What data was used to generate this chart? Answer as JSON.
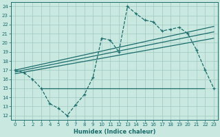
{
  "title": "",
  "xlabel": "Humidex (Indice chaleur)",
  "ylabel": "",
  "bg_color": "#c8e8e0",
  "grid_color": "#a0c8c0",
  "line_color": "#1a6b6b",
  "ylim": [
    11.5,
    24.5
  ],
  "xlim": [
    -0.5,
    23.5
  ],
  "yticks": [
    12,
    13,
    14,
    15,
    16,
    17,
    18,
    19,
    20,
    21,
    22,
    23,
    24
  ],
  "xticks": [
    0,
    1,
    2,
    3,
    4,
    5,
    6,
    7,
    8,
    9,
    10,
    11,
    12,
    13,
    14,
    15,
    16,
    17,
    18,
    19,
    20,
    21,
    22,
    23
  ],
  "dashed_x": [
    0,
    1,
    2,
    3,
    4,
    5,
    6,
    7,
    8,
    9,
    10,
    11,
    12,
    13,
    14,
    15,
    16,
    17,
    18,
    19,
    20,
    21,
    22,
    23
  ],
  "dashed_y": [
    17.0,
    16.7,
    16.0,
    15.0,
    13.3,
    12.8,
    12.0,
    13.2,
    14.3,
    16.2,
    20.5,
    20.3,
    19.0,
    24.0,
    23.2,
    22.5,
    22.3,
    21.3,
    21.5,
    21.7,
    21.0,
    19.2,
    17.0,
    15.0
  ],
  "trend1_x": [
    0,
    23
  ],
  "trend1_y": [
    17.0,
    21.8
  ],
  "trend2_x": [
    0,
    23
  ],
  "trend2_y": [
    16.6,
    20.5
  ],
  "trend3_x": [
    0,
    23
  ],
  "trend3_y": [
    16.8,
    21.2
  ],
  "hline_y": 15.0,
  "hline_x_start": 3.0,
  "hline_x_end": 22.0
}
